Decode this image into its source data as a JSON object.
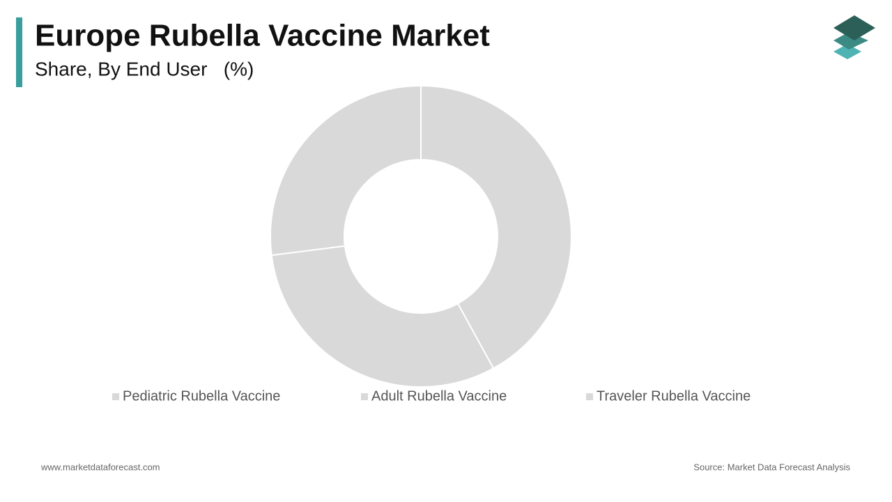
{
  "chart_data": {
    "type": "donut",
    "title": "Europe Rubella Vaccine Market",
    "subtitle": "Share, By End User   (%)",
    "categories": [
      "Pediatric Rubella Vaccine",
      "Adult Rubella Vaccine",
      "Traveler Rubella Vaccine"
    ],
    "values": [
      42,
      31,
      27
    ],
    "colors": [
      "#d9d9d9",
      "#d9d9d9",
      "#d9d9d9"
    ],
    "footer_left": "www.marketdataforecast.com",
    "footer_right": "Source: Market Data Forecast Analysis"
  }
}
